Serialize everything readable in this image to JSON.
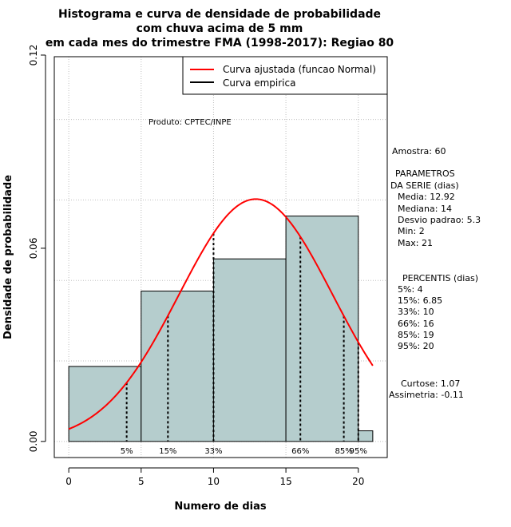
{
  "title_lines": [
    "Histograma e curva de densidade de probabilidade",
    "com chuva acima de 5 mm",
    "em cada mes do trimestre FMA (1998-2017): Regiao 80"
  ],
  "product_label": "Produto: CPTEC/INPE",
  "legend": {
    "fitted": "Curva ajustada (funcao Normal)",
    "empirical": "Curva empirica"
  },
  "stats": {
    "sample": "Amostra: 60",
    "params_heading_1": "PARAMETROS",
    "params_heading_2": "DA SERIE (dias)",
    "params": [
      "Media: 12.92",
      "Mediana: 14",
      "Desvio padrao: 5.3",
      "Min: 2",
      "Max: 21"
    ],
    "percentis_heading": "PERCENTIS (dias)",
    "percentis": [
      "5%: 4",
      "15%: 6.85",
      "33%: 10",
      "66%: 16",
      "85%: 19",
      "95%: 20"
    ],
    "kurtosis": "Curtose: 1.07",
    "skewness": "Assimetria: -0.11"
  },
  "colors": {
    "bar_fill": "#b5cdcd",
    "fitted_curve": "#ff0000",
    "empirical_curve": "#000000",
    "grid": "#bebebe"
  },
  "chart_data": {
    "type": "bar",
    "title": "Histograma e curva de densidade de probabilidade com chuva acima de 5 mm em cada mes do trimestre FMA (1998-2017): Regiao 80",
    "xlabel": "Numero de dias",
    "ylabel": "Densidade de probabilidade",
    "xlim": [
      -1,
      22
    ],
    "ylim": [
      -0.005,
      0.1195
    ],
    "x_ticks": [
      0,
      5,
      10,
      15,
      20
    ],
    "y_ticks": [
      0.0,
      0.06,
      0.12
    ],
    "y_tick_labels": [
      "0.00",
      "0.06",
      "0.12"
    ],
    "grid": true,
    "legend_position": "top-right",
    "bins": [
      {
        "x0": 0,
        "x1": 5,
        "density": 0.0233
      },
      {
        "x0": 5,
        "x1": 10,
        "density": 0.0467
      },
      {
        "x0": 10,
        "x1": 15,
        "density": 0.0567
      },
      {
        "x0": 15,
        "x1": 20,
        "density": 0.07
      },
      {
        "x0": 20,
        "x1": 21,
        "density": 0.0033
      }
    ],
    "fitted_normal": {
      "mean": 12.92,
      "sd": 5.3,
      "x_from": 0,
      "x_to": 21
    },
    "percentile_lines": [
      {
        "label": "5%",
        "x": 4
      },
      {
        "label": "15%",
        "x": 6.85
      },
      {
        "label": "33%",
        "x": 10
      },
      {
        "label": "66%",
        "x": 16
      },
      {
        "label": "85%",
        "x": 19
      },
      {
        "label": "95%",
        "x": 20
      }
    ]
  }
}
